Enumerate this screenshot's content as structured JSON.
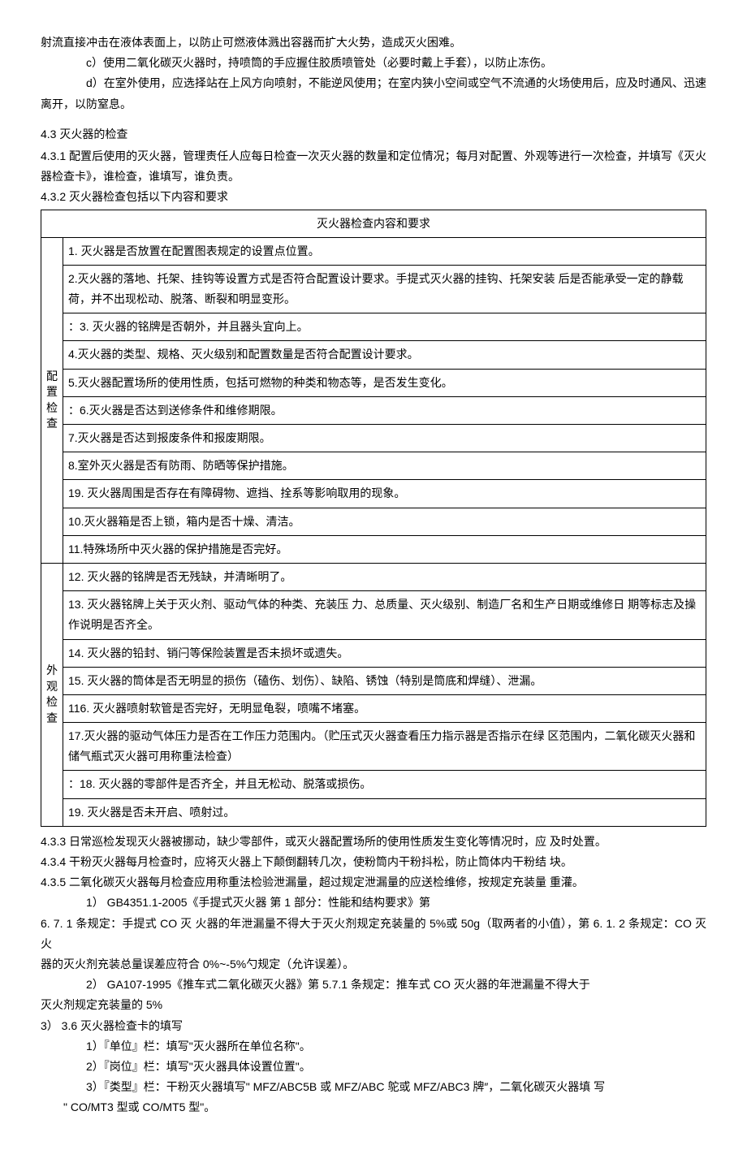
{
  "intro": {
    "p1": "射流直接冲击在液体表面上，以防止可燃液体溅出容器而扩大火势，造成灭火困难。",
    "p2": "c）使用二氧化碳灭火器时，持喷筒的手应握住胶质喷管处（必要时戴上手套），以防止冻伤。",
    "p3": "d）在室外使用，应选择站在上风方向喷射，不能逆风使用；在室内狭小空间或空气不流通的火场使用后，应及时通风、迅速离开，以防窒息。"
  },
  "s43": {
    "title": "4.3   灭火器的检查",
    "s431": "4.3.1   配置后使用的灭火器，管理责任人应每日检查一次灭火器的数量和定位情况；每月对配置、外观等进行一次检查，并填写《灭火器检查卡》，谁检查，谁填写，谁负责。",
    "s432": "4.3.2   灭火器检查包括以下内容和要求"
  },
  "table": {
    "header": "灭火器检查内容和要求",
    "group1_label": "配置检查",
    "group2_label": "外观检查",
    "g1": [
      "1. 灭火器是否放置在配置图表规定的设置点位置。",
      "2.灭火器的落地、托架、挂钩等设置方式是否符合配置设计要求。手提式灭火器的挂钩、托架安装 后是否能承受一定的静载荷，并不出现松动、脱落、断裂和明显变形。",
      "：3. 灭火器的铭牌是否朝外，并且器头宜向上。",
      "4.灭火器的类型、规格、灭火级别和配置数量是否符合配置设计要求。",
      "5.灭火器配置场所的使用性质，包括可燃物的种类和物态等，是否发生变化。",
      "：6.灭火器是否达到送修条件和维修期限。",
      "7.灭火器是否达到报废条件和报废期限。",
      "8.室外灭火器是否有防雨、防晒等保护措施。",
      "19. 灭火器周围是否存在有障碍物、遮挡、拴系等影响取用的现象。",
      "10.灭火器箱是否上锁，箱内是否十燥、清洁。",
      "11.特殊场所中灭火器的保护措施是否完好。"
    ],
    "g2": [
      "12. 灭火器的铭牌是否无残缺，并清晰明了。",
      "13. 灭火器铭牌上关于灭火剂、驱动气体的种类、充装压 力、总质量、灭火级别、制造厂名和生产日期或维修日 期等标志及操作说明是否齐全。",
      "14. 灭火器的铅封、销闩等保险装置是否未损坏或遗失。",
      "15. 灭火器的筒体是否无明显的损伤（磕伤、划伤）、缺陷、锈蚀（特别是筒底和焊缝）、泄漏。",
      "116. 灭火器喷射软管是否完好，无明显龟裂，喷嘴不堵塞。",
      "17.灭火器的驱动气体压力是否在工作压力范围内。（贮压式灭火器查看压力指示器是否指示在绿 区范围内，二氧化碳灭火器和储气瓶式灭火器可用称重法检查）",
      "：18. 灭火器的零部件是否齐全，并且无松动、脱落或损伤。",
      "19. 灭火器是否未开启、喷射过。"
    ]
  },
  "after": {
    "s433": "4.3.3   日常巡检发现灭火器被挪动，缺少零部件，或灭火器配置场所的使用性质发生变化等情况时，应 及时处置。",
    "s434": "4.3.4   干粉灭火器每月检查时，应将灭火器上下颠倒翻转几次，使粉筒内干粉抖松，防止筒体内干粉结 块。",
    "s435": "4.3.5   二氧化碳灭火器每月检查应用称重法检验泄漏量，超过规定泄漏量的应送检维修，按规定充装量 重灌。",
    "reg1a": "1）                                                   GB4351.1-2005《手提式灭火器 第 1 部分：性能和结构要求》第",
    "reg1b": "6. 7. 1 条规定：手提式 CO 灭 火器的年泄漏量不得大于灭火剂规定充装量的 5%或 50g（取两者的小值），第 6. 1. 2 条规定：CO 灭火",
    "reg1c": "器的灭火剂充装总量误差应符合 0%~-5%勺规定（允许误差）。",
    "reg2a": "2）      GA107-1995《推车式二氧化碳灭火器》第 5.7.1 条规定：推车式 CO 灭火器的年泄漏量不得大于",
    "reg2b": "灭火剂规定充装量的 5%",
    "s36": "3）      3.6 灭火器检查卡的填写",
    "f1": "1）『单位』栏：填写\"灭火器所在单位名称\"。",
    "f2": "2）『岗位』栏：填写\"灭火器具体设置位置\"。",
    "f3": "3）『类型』栏：干粉灭火器填写\" MFZ/ABC5B 或 MFZ/ABC 鸵或 MFZ/ABC3 牌″，二氧化碳灭火器填 写",
    "f3b": "\" CO/MT3 型或 CO/MT5 型\"。"
  }
}
